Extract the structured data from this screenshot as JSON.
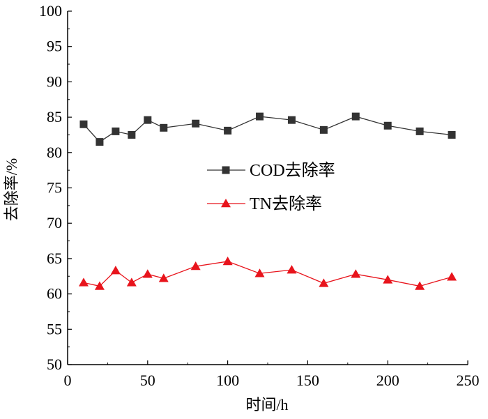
{
  "chart_data": {
    "type": "line",
    "title": "",
    "xlabel": "时间/h",
    "ylabel": "去除率/%",
    "xlim": [
      0,
      250
    ],
    "ylim": [
      50,
      100
    ],
    "xticks": [
      0,
      50,
      100,
      150,
      200,
      250
    ],
    "yticks": [
      50,
      55,
      60,
      65,
      70,
      75,
      80,
      85,
      90,
      95,
      100
    ],
    "grid": false,
    "legend_position": "center-right",
    "series": [
      {
        "name": "COD去除率",
        "color": "#333333",
        "marker": "square",
        "x": [
          10,
          20,
          30,
          40,
          50,
          60,
          80,
          100,
          120,
          140,
          160,
          180,
          200,
          220,
          240
        ],
        "y": [
          84.0,
          81.5,
          83.0,
          82.5,
          84.6,
          83.5,
          84.1,
          83.1,
          85.1,
          84.6,
          83.2,
          85.1,
          83.8,
          83.0,
          82.5
        ]
      },
      {
        "name": "TN去除率",
        "color": "#e8141c",
        "marker": "triangle",
        "x": [
          10,
          20,
          30,
          40,
          50,
          60,
          80,
          100,
          120,
          140,
          160,
          180,
          200,
          220,
          240
        ],
        "y": [
          61.6,
          61.1,
          63.3,
          61.6,
          62.8,
          62.2,
          63.9,
          64.6,
          62.9,
          63.4,
          61.5,
          62.8,
          62.0,
          61.1,
          62.4
        ]
      }
    ]
  }
}
